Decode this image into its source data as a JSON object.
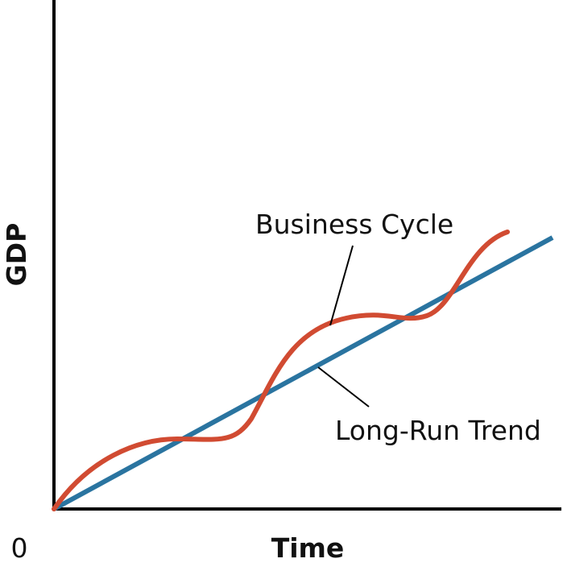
{
  "axes": {
    "y_label": "GDP",
    "x_label": "Time",
    "origin": "0"
  },
  "annotations": {
    "business_cycle": "Business Cycle",
    "long_run_trend": "Long-Run Trend"
  }
}
